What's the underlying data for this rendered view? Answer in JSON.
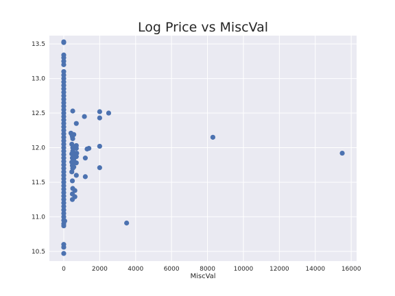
{
  "chart_data": {
    "type": "scatter",
    "title": "Log Price vs MiscVal",
    "xlabel": "MiscVal",
    "ylabel": "",
    "xlim": [
      -800,
      16300
    ],
    "ylim": [
      10.36,
      13.62
    ],
    "xticks": [
      0,
      2000,
      4000,
      6000,
      8000,
      10000,
      12000,
      14000,
      16000
    ],
    "yticks": [
      10.5,
      11.0,
      11.5,
      12.0,
      12.5,
      13.0,
      13.5
    ],
    "xtick_labels": [
      "0",
      "2000",
      "4000",
      "6000",
      "8000",
      "10000",
      "12000",
      "14000",
      "16000"
    ],
    "ytick_labels": [
      "10.5",
      "11.0",
      "11.5",
      "12.0",
      "12.5",
      "13.0",
      "13.5"
    ],
    "grid": true,
    "background_color": "#eaeaf2",
    "marker_color": "#4c72b0",
    "points": [
      [
        0,
        13.53
      ],
      [
        0,
        13.52
      ],
      [
        0,
        13.34
      ],
      [
        0,
        13.3
      ],
      [
        0,
        13.25
      ],
      [
        0,
        13.2
      ],
      [
        0,
        13.1
      ],
      [
        0,
        13.05
      ],
      [
        0,
        13.0
      ],
      [
        0,
        12.95
      ],
      [
        0,
        12.9
      ],
      [
        0,
        12.85
      ],
      [
        0,
        12.8
      ],
      [
        0,
        12.75
      ],
      [
        0,
        12.7
      ],
      [
        0,
        12.65
      ],
      [
        0,
        12.6
      ],
      [
        0,
        12.55
      ],
      [
        0,
        12.5
      ],
      [
        0,
        12.45
      ],
      [
        0,
        12.4
      ],
      [
        0,
        12.35
      ],
      [
        0,
        12.3
      ],
      [
        0,
        12.25
      ],
      [
        0,
        12.2
      ],
      [
        0,
        12.15
      ],
      [
        0,
        12.1
      ],
      [
        0,
        12.05
      ],
      [
        0,
        12.0
      ],
      [
        0,
        11.95
      ],
      [
        0,
        11.9
      ],
      [
        0,
        11.85
      ],
      [
        0,
        11.8
      ],
      [
        0,
        11.75
      ],
      [
        0,
        11.7
      ],
      [
        0,
        11.65
      ],
      [
        0,
        11.6
      ],
      [
        0,
        11.55
      ],
      [
        0,
        11.5
      ],
      [
        0,
        11.45
      ],
      [
        0,
        11.4
      ],
      [
        0,
        11.35
      ],
      [
        0,
        11.3
      ],
      [
        0,
        11.25
      ],
      [
        0,
        11.2
      ],
      [
        0,
        11.15
      ],
      [
        0,
        11.1
      ],
      [
        0,
        11.05
      ],
      [
        0,
        11.0
      ],
      [
        0,
        10.95
      ],
      [
        0,
        10.9
      ],
      [
        0,
        10.87
      ],
      [
        0,
        10.6
      ],
      [
        0,
        10.56
      ],
      [
        0,
        10.47
      ],
      [
        54,
        10.94
      ],
      [
        400,
        12.21
      ],
      [
        450,
        12.19
      ],
      [
        480,
        12.16
      ],
      [
        500,
        12.13
      ],
      [
        560,
        12.19
      ],
      [
        450,
        12.05
      ],
      [
        500,
        12.0
      ],
      [
        560,
        12.01
      ],
      [
        700,
        12.03
      ],
      [
        700,
        11.99
      ],
      [
        450,
        11.91
      ],
      [
        500,
        11.95
      ],
      [
        600,
        11.92
      ],
      [
        620,
        11.9
      ],
      [
        720,
        11.92
      ],
      [
        480,
        11.85
      ],
      [
        560,
        11.84
      ],
      [
        600,
        11.86
      ],
      [
        700,
        11.87
      ],
      [
        450,
        11.79
      ],
      [
        480,
        11.74
      ],
      [
        500,
        11.7
      ],
      [
        560,
        11.72
      ],
      [
        620,
        11.79
      ],
      [
        700,
        11.78
      ],
      [
        450,
        11.65
      ],
      [
        700,
        11.6
      ],
      [
        480,
        11.52
      ],
      [
        500,
        11.41
      ],
      [
        620,
        11.38
      ],
      [
        480,
        11.33
      ],
      [
        620,
        11.29
      ],
      [
        480,
        11.25
      ],
      [
        500,
        12.53
      ],
      [
        700,
        12.35
      ],
      [
        1150,
        12.45
      ],
      [
        1200,
        11.85
      ],
      [
        1300,
        11.98
      ],
      [
        1400,
        11.99
      ],
      [
        1200,
        11.58
      ],
      [
        2000,
        12.52
      ],
      [
        2000,
        12.43
      ],
      [
        2500,
        12.5
      ],
      [
        2000,
        12.02
      ],
      [
        2000,
        11.71
      ],
      [
        3500,
        10.91
      ],
      [
        8300,
        12.15
      ],
      [
        15500,
        11.92
      ]
    ]
  }
}
